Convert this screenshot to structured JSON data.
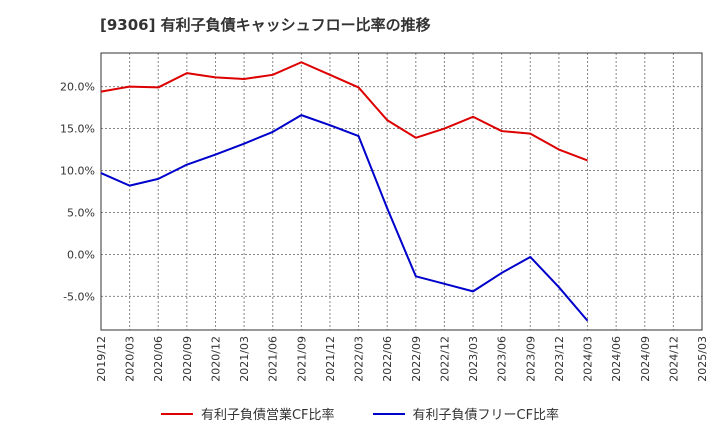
{
  "title": "[9306]  有利子負債キャッシュフロー比率の推移",
  "chart_data": {
    "type": "line",
    "title": "[9306]  有利子負債キャッシュフロー比率の推移",
    "x": [
      "2019/12",
      "2020/03",
      "2020/06",
      "2020/09",
      "2020/12",
      "2021/03",
      "2021/06",
      "2021/09",
      "2021/12",
      "2022/03",
      "2022/06",
      "2022/09",
      "2022/12",
      "2023/03",
      "2023/06",
      "2023/09",
      "2023/12",
      "2024/03",
      "2024/06",
      "2024/09",
      "2024/12",
      "2025/03"
    ],
    "ylim": [
      -9,
      24
    ],
    "yticks": [
      -5,
      0,
      5,
      10,
      15,
      20
    ],
    "ytick_labels": [
      "-5.0%",
      "0.0%",
      "5.0%",
      "10.0%",
      "15.0%",
      "20.0%"
    ],
    "grid": true,
    "legend_position": "bottom",
    "series": [
      {
        "name": "有利子負債営業CF比率",
        "color": "#dd0000",
        "values": [
          19.4,
          20.0,
          19.9,
          21.6,
          21.1,
          20.9,
          21.4,
          22.9,
          21.4,
          19.9,
          16.0,
          13.9,
          15.0,
          16.4,
          14.7,
          14.4,
          12.5,
          11.2,
          null,
          null,
          null,
          null
        ]
      },
      {
        "name": "有利子負債フリーCF比率",
        "color": "#0000cc",
        "values": [
          9.7,
          8.2,
          9.0,
          10.7,
          11.9,
          13.2,
          14.6,
          16.6,
          15.4,
          14.1,
          5.5,
          -2.6,
          -3.5,
          -4.4,
          -2.2,
          -0.3,
          -3.9,
          -7.9,
          null,
          null,
          null,
          null
        ]
      }
    ]
  }
}
